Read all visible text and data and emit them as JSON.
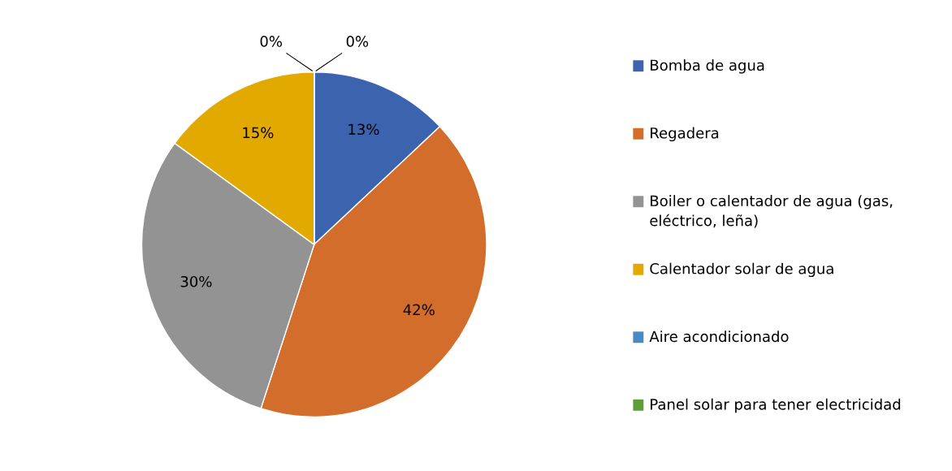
{
  "chart_data": {
    "type": "pie",
    "categories": [
      "Bomba de agua",
      "Regadera",
      "Boiler o calentador de agua (gas, eléctrico, leña)",
      "Calentador solar de agua",
      "Aire acondicionado",
      "Panel solar para tener electricidad"
    ],
    "values": [
      13,
      42,
      30,
      15,
      0,
      0
    ],
    "colors": [
      "#3c64ae",
      "#d36d2b",
      "#939393",
      "#e2aa00",
      "#4a8ac4",
      "#5d9e3a"
    ],
    "value_labels": [
      "13%",
      "42%",
      "30%",
      "15%",
      "0%",
      "0%"
    ],
    "legend": "right"
  }
}
